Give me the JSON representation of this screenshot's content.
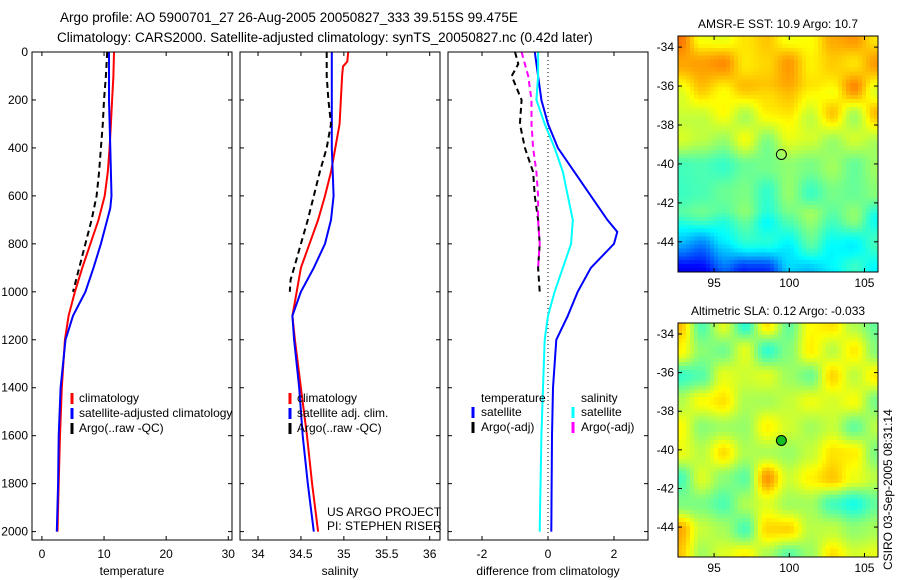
{
  "figure": {
    "title_line1": "Argo profile: AO 5900701_27 26-Aug-2005 20050827_333 39.515S 99.475E",
    "title_line2": "Climatology: CARS2000. Satellite-adjusted climatology: synTS_20050827.nc (0.42d later)",
    "side_stamp": "CSIRO 03-Sep-2005 08:31:14"
  },
  "colors": {
    "climatology": "#ff0000",
    "satellite": "#0000ff",
    "argo": "#000000",
    "sal_satellite": "#00ffff",
    "sal_argo": "#ff00ff"
  },
  "chart_data": [
    {
      "type": "line",
      "id": "temperature",
      "xlabel": "temperature",
      "ylabel": "",
      "xlim": [
        -1.6,
        30.6
      ],
      "ylim": [
        0,
        2035
      ],
      "y_reversed": true,
      "xticks": [
        0,
        10,
        20,
        30
      ],
      "yticks": [
        0,
        200,
        400,
        600,
        800,
        1000,
        1200,
        1400,
        1600,
        1800,
        2000
      ],
      "show_ytick_labels": true,
      "series": [
        {
          "name": "climatology",
          "color": "#ff0000",
          "dash": false,
          "depth": [
            0,
            100,
            200,
            300,
            400,
            500,
            600,
            700,
            800,
            900,
            1000,
            1100,
            1200,
            1400,
            1600,
            1800,
            2000
          ],
          "values": [
            11.6,
            11.5,
            11.3,
            11.1,
            10.9,
            10.6,
            10.1,
            9.1,
            7.8,
            6.5,
            5.3,
            4.3,
            3.7,
            3.2,
            2.9,
            2.7,
            2.5
          ]
        },
        {
          "name": "satellite-adjusted climatology",
          "color": "#0000ff",
          "dash": false,
          "depth": [
            0,
            200,
            400,
            600,
            650,
            700,
            800,
            900,
            1000,
            1100,
            1200,
            1400,
            1600,
            1800,
            2000
          ],
          "values": [
            10.8,
            10.8,
            11.0,
            11.2,
            11.0,
            10.5,
            9.5,
            8.3,
            7.0,
            5.0,
            3.8,
            3.0,
            2.7,
            2.6,
            2.4
          ]
        },
        {
          "name": "Argo(..raw -QC)",
          "color": "#000000",
          "dash": true,
          "depth": [
            0,
            100,
            200,
            300,
            400,
            500,
            600,
            700,
            800,
            900,
            1000
          ],
          "values": [
            10.5,
            10.3,
            10.0,
            9.8,
            9.5,
            9.2,
            8.8,
            8.0,
            7.0,
            6.0,
            5.0
          ]
        }
      ],
      "legend": [
        "climatology",
        "satellite-adjusted climatology",
        "Argo(..raw -QC)"
      ]
    },
    {
      "type": "line",
      "id": "salinity",
      "xlabel": "salinity",
      "ylabel": "",
      "xlim": [
        33.79,
        36.12
      ],
      "ylim": [
        0,
        2035
      ],
      "y_reversed": true,
      "xticks": [
        34,
        34.5,
        35,
        35.5,
        36
      ],
      "yticks": [
        0,
        200,
        400,
        600,
        800,
        1000,
        1200,
        1400,
        1600,
        1800,
        2000
      ],
      "show_ytick_labels": false,
      "series": [
        {
          "name": "climatology",
          "color": "#ff0000",
          "dash": false,
          "depth": [
            0,
            40,
            60,
            100,
            300,
            400,
            500,
            600,
            700,
            800,
            900,
            1000,
            1100,
            1200,
            1400,
            1600,
            1800,
            2000
          ],
          "values": [
            35.05,
            35.04,
            34.99,
            34.98,
            34.95,
            34.9,
            34.85,
            34.78,
            34.7,
            34.6,
            34.5,
            34.45,
            34.4,
            34.43,
            34.5,
            34.57,
            34.63,
            34.7
          ]
        },
        {
          "name": "satellite adj. clim.",
          "color": "#0000ff",
          "dash": false,
          "depth": [
            0,
            200,
            400,
            600,
            700,
            800,
            900,
            1000,
            1100,
            1200,
            1400,
            1600,
            1800,
            2000
          ],
          "values": [
            34.86,
            34.86,
            34.86,
            34.88,
            34.85,
            34.78,
            34.65,
            34.5,
            34.4,
            34.42,
            34.48,
            34.52,
            34.58,
            34.65
          ]
        },
        {
          "name": "Argo(..raw -QC)",
          "color": "#000000",
          "dash": true,
          "depth": [
            0,
            100,
            200,
            300,
            400,
            500,
            600,
            700,
            800,
            900,
            950,
            1000
          ],
          "values": [
            34.8,
            34.8,
            34.82,
            34.85,
            34.8,
            34.72,
            34.65,
            34.58,
            34.5,
            34.42,
            34.38,
            34.37
          ]
        }
      ],
      "legend": [
        "climatology",
        "satellite adj. clim.",
        "Argo(..raw -QC)"
      ],
      "annotation": [
        "US ARGO PROJECT",
        "PI: STEPHEN RISER"
      ]
    },
    {
      "type": "line",
      "id": "difference",
      "xlabel": "difference from climatology",
      "ylabel": "",
      "xlim": [
        -3.03,
        3.03
      ],
      "ylim": [
        0,
        2035
      ],
      "y_reversed": true,
      "xticks": [
        -2,
        0,
        2
      ],
      "yticks": [
        0,
        200,
        400,
        600,
        800,
        1000,
        1200,
        1400,
        1600,
        1800,
        2000
      ],
      "show_ytick_labels": false,
      "zero_line": true,
      "series": [
        {
          "name": "temperature satellite",
          "color": "#0000ff",
          "dash": false,
          "depth": [
            0,
            100,
            200,
            300,
            400,
            500,
            600,
            700,
            750,
            800,
            900,
            1000,
            1100,
            1200,
            1400,
            1600,
            2000
          ],
          "values": [
            -0.4,
            -0.3,
            -0.2,
            0.0,
            0.3,
            0.8,
            1.3,
            1.8,
            2.1,
            2.0,
            1.3,
            0.9,
            0.6,
            0.25,
            0.15,
            0.12,
            0.1
          ]
        },
        {
          "name": "salinity satellite",
          "color": "#00ffff",
          "dash": false,
          "depth": [
            0,
            100,
            200,
            300,
            400,
            500,
            600,
            700,
            800,
            900,
            1000,
            1100,
            1200,
            1400,
            1600,
            2000
          ],
          "values": [
            -0.3,
            -0.3,
            -0.35,
            -0.1,
            0.2,
            0.45,
            0.6,
            0.75,
            0.7,
            0.45,
            0.2,
            0.0,
            -0.1,
            -0.15,
            -0.2,
            -0.25
          ]
        },
        {
          "name": "temperature Argo(-adj)",
          "color": "#000000",
          "dash": true,
          "depth": [
            0,
            50,
            100,
            200,
            300,
            400,
            500,
            600,
            700,
            800,
            900,
            1000
          ],
          "values": [
            -1.0,
            -0.9,
            -1.1,
            -0.8,
            -0.85,
            -0.7,
            -0.45,
            -0.4,
            -0.3,
            -0.25,
            -0.3,
            -0.25
          ]
        },
        {
          "name": "salinity Argo(-adj)",
          "color": "#ff00ff",
          "dash": true,
          "depth": [
            0,
            50,
            100,
            200,
            300,
            400,
            500,
            600,
            700,
            800,
            900
          ],
          "values": [
            -0.8,
            -0.7,
            -0.6,
            -0.5,
            -0.5,
            -0.45,
            -0.35,
            -0.3,
            -0.3,
            -0.25,
            -0.3
          ]
        }
      ],
      "legend_groups": [
        {
          "heading": "temperature",
          "items": [
            {
              "label": "satellite",
              "color": "#0000ff"
            },
            {
              "label": "Argo(-adj)",
              "color": "#000000"
            }
          ]
        },
        {
          "heading": "salinity",
          "items": [
            {
              "label": "satellite",
              "color": "#00ffff"
            },
            {
              "label": "Argo(-adj)",
              "color": "#ff00ff"
            }
          ]
        }
      ]
    },
    {
      "type": "heatmap",
      "id": "sst",
      "title": "AMSR-E SST: 10.9 Argo: 10.7",
      "xlim": [
        92.6,
        105.9
      ],
      "ylim": [
        -45.55,
        -33.43
      ],
      "xticks": [
        95,
        100,
        105
      ],
      "yticks": [
        -34,
        -36,
        -38,
        -40,
        -42,
        -44
      ],
      "profile_location": [
        99.475,
        -39.515
      ]
    },
    {
      "type": "heatmap",
      "id": "sla",
      "title": "Altimetric SLA: 0.12 Argo: -0.033",
      "xlim": [
        92.6,
        105.9
      ],
      "ylim": [
        -45.55,
        -33.43
      ],
      "xticks": [
        95,
        100,
        105
      ],
      "yticks": [
        -34,
        -36,
        -38,
        -40,
        -42,
        -44
      ],
      "profile_location": [
        99.475,
        -39.515
      ]
    }
  ]
}
